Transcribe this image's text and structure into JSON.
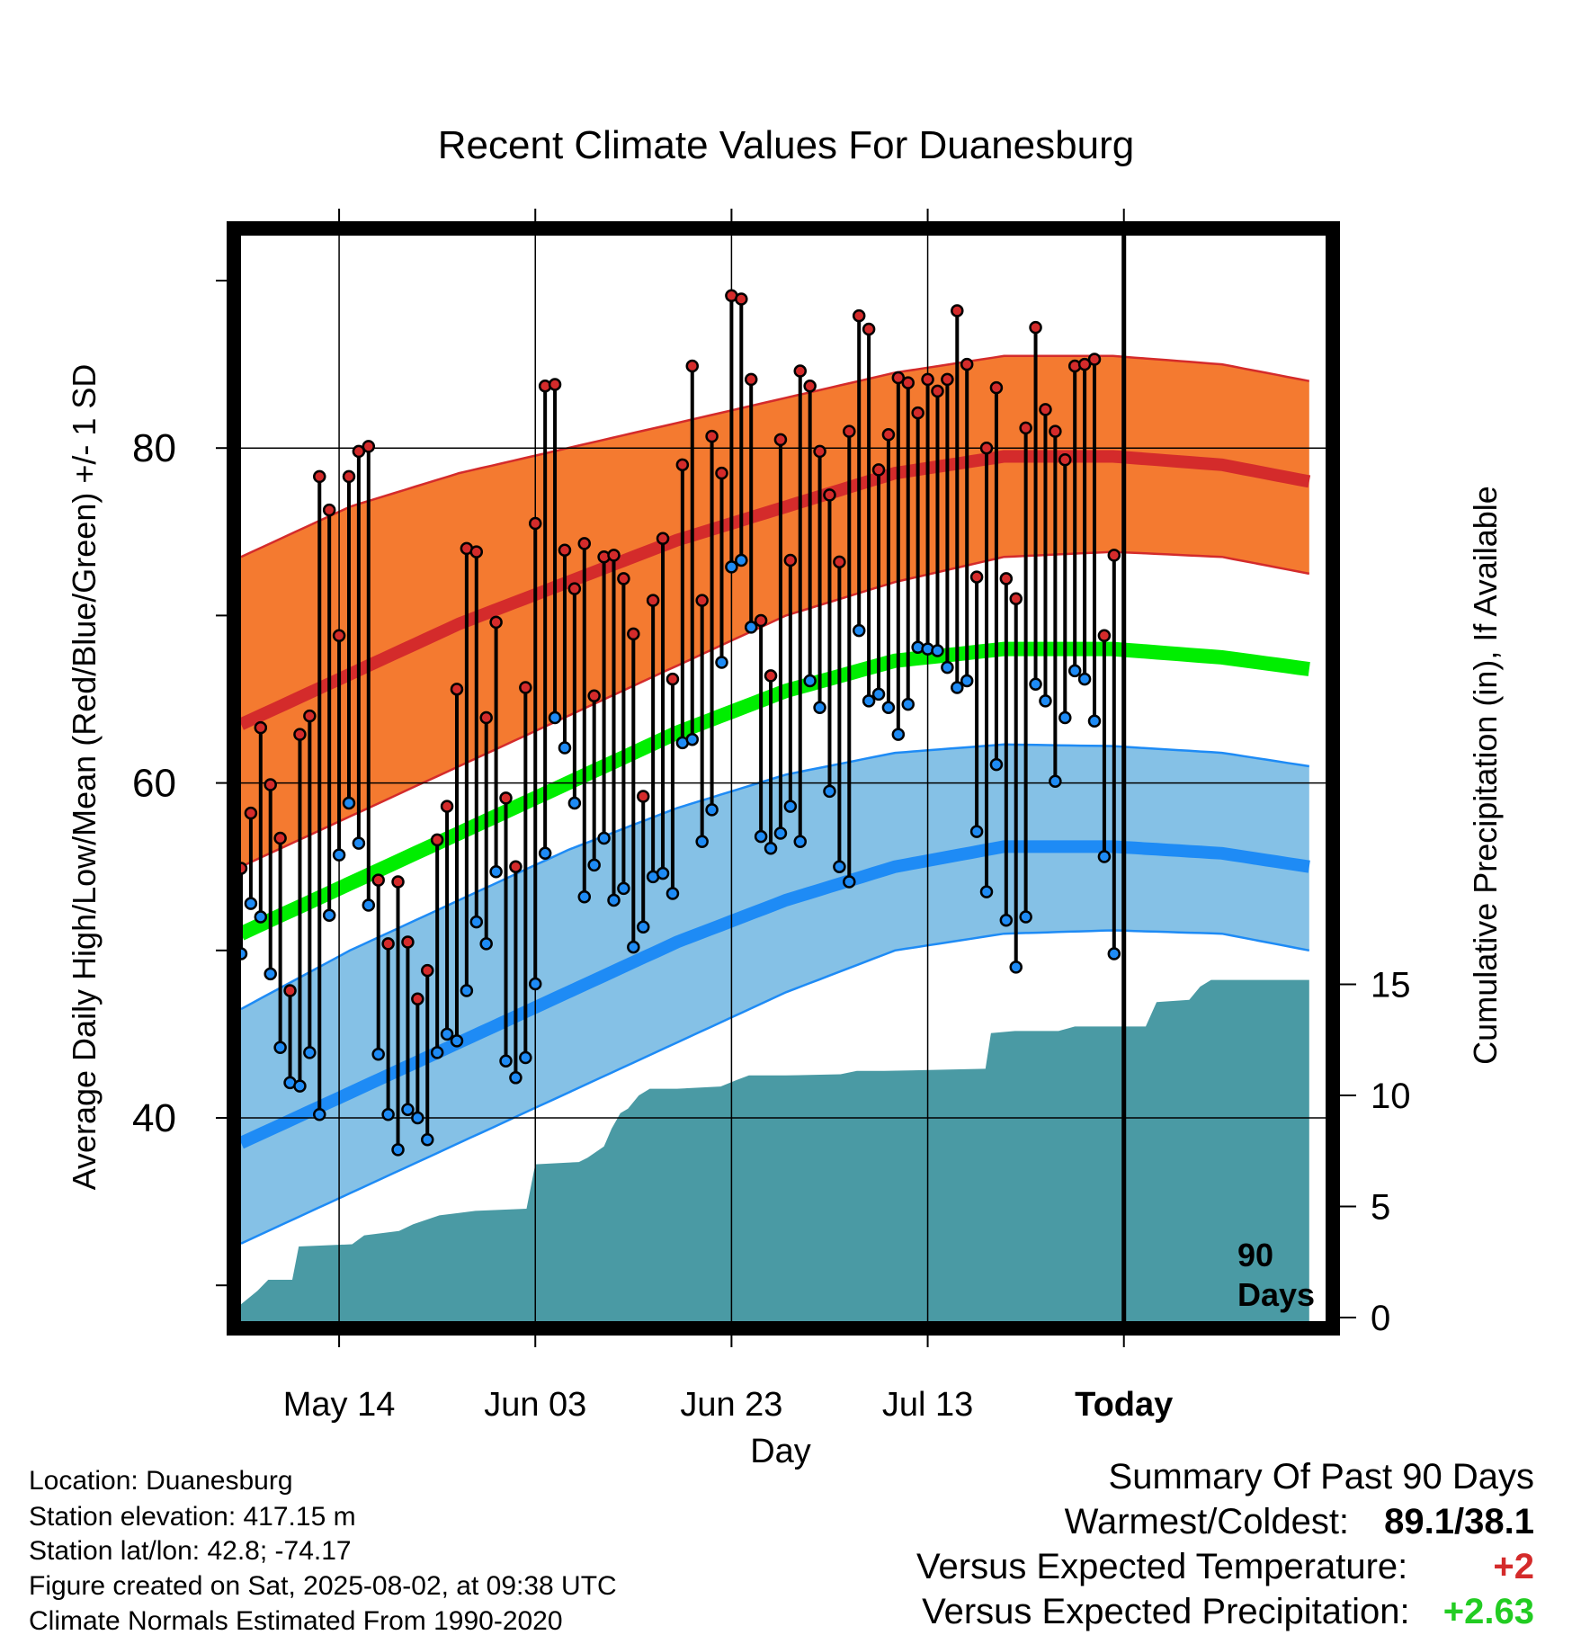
{
  "chart_data": {
    "type": "line",
    "title": "Recent Climate Values For Duanesburg",
    "xlabel": "Day",
    "ylabel": "Average Daily High/Low/Mean (Red/Blue/Green) +/- 1 SD",
    "y2label": "Cumulative Precipitation (in), If Available",
    "ylim": [
      28,
      93
    ],
    "y2lim": [
      0,
      20
    ],
    "yticks": [
      40,
      60,
      80
    ],
    "y2ticks": [
      0,
      5,
      10,
      15
    ],
    "xticklabels": [
      "May 14",
      "Jun 03",
      "Jun 23",
      "Jul 13",
      "Today"
    ],
    "today_marker": {
      "line1": "90",
      "line2": "Days"
    },
    "colors": {
      "high": "#d42b2b",
      "low": "#1e8bf5",
      "mean": "#00ee00",
      "high_band": "#f47a30",
      "low_band": "#85c1e6",
      "precip": "#4a9aa4"
    },
    "normals": {
      "high_mean": [
        [
          0,
          63.5
        ],
        [
          10,
          66.5
        ],
        [
          20,
          69.5
        ],
        [
          30,
          72
        ],
        [
          40,
          74.5
        ],
        [
          50,
          76.5
        ],
        [
          60,
          78.5
        ],
        [
          70,
          79.5
        ],
        [
          80,
          79.5
        ],
        [
          90,
          79
        ],
        [
          98,
          78
        ]
      ],
      "high_upper": [
        [
          0,
          73.5
        ],
        [
          10,
          76.5
        ],
        [
          20,
          78.5
        ],
        [
          30,
          80
        ],
        [
          40,
          81.5
        ],
        [
          50,
          83
        ],
        [
          60,
          84.5
        ],
        [
          70,
          85.5
        ],
        [
          80,
          85.5
        ],
        [
          90,
          85
        ],
        [
          98,
          84
        ]
      ],
      "high_lower": [
        [
          0,
          55
        ],
        [
          10,
          58
        ],
        [
          20,
          61
        ],
        [
          30,
          64
        ],
        [
          40,
          67
        ],
        [
          50,
          70
        ],
        [
          60,
          72
        ],
        [
          70,
          73.5
        ],
        [
          80,
          73.8
        ],
        [
          90,
          73.5
        ],
        [
          98,
          72.5
        ]
      ],
      "low_mean": [
        [
          0,
          38.5
        ],
        [
          10,
          41.5
        ],
        [
          20,
          44.5
        ],
        [
          30,
          47.5
        ],
        [
          40,
          50.5
        ],
        [
          50,
          53
        ],
        [
          60,
          55
        ],
        [
          70,
          56.2
        ],
        [
          80,
          56.2
        ],
        [
          90,
          55.8
        ],
        [
          98,
          55
        ]
      ],
      "low_upper": [
        [
          0,
          46.5
        ],
        [
          10,
          50
        ],
        [
          20,
          53
        ],
        [
          30,
          56
        ],
        [
          40,
          58.5
        ],
        [
          50,
          60.5
        ],
        [
          60,
          61.8
        ],
        [
          70,
          62.3
        ],
        [
          80,
          62.2
        ],
        [
          90,
          61.8
        ],
        [
          98,
          61
        ]
      ],
      "low_lower": [
        [
          0,
          32.5
        ],
        [
          10,
          35.5
        ],
        [
          20,
          38.5
        ],
        [
          30,
          41.5
        ],
        [
          40,
          44.5
        ],
        [
          50,
          47.5
        ],
        [
          60,
          50
        ],
        [
          70,
          51
        ],
        [
          80,
          51.2
        ],
        [
          90,
          51
        ],
        [
          98,
          50
        ]
      ],
      "mean": [
        [
          0,
          51
        ],
        [
          10,
          54
        ],
        [
          20,
          57
        ],
        [
          30,
          60
        ],
        [
          40,
          63
        ],
        [
          50,
          65.5
        ],
        [
          60,
          67.3
        ],
        [
          70,
          68
        ],
        [
          80,
          68
        ],
        [
          90,
          67.5
        ],
        [
          98,
          66.8
        ]
      ]
    },
    "daily": {
      "high": [
        54.9,
        58.2,
        63.3,
        59.9,
        56.7,
        47.6,
        62.9,
        64.0,
        78.3,
        76.3,
        68.8,
        78.3,
        79.8,
        80.1,
        54.2,
        50.4,
        54.1,
        50.5,
        47.1,
        48.8,
        56.6,
        58.6,
        65.6,
        74.0,
        73.8,
        63.9,
        69.6,
        59.1,
        55.0,
        65.7,
        75.5,
        83.7,
        83.8,
        73.9,
        71.6,
        74.3,
        65.2,
        73.5,
        73.6,
        72.2,
        68.9,
        59.2,
        70.9,
        74.6,
        66.2,
        79.0,
        84.9,
        70.9,
        80.7,
        78.5,
        89.1,
        88.9,
        84.1,
        69.7,
        66.4,
        80.5,
        73.3,
        84.6,
        83.7,
        79.8,
        77.2,
        73.2,
        81.0,
        87.9,
        87.1,
        78.7,
        80.8,
        84.2,
        83.9,
        82.1,
        84.1,
        83.4,
        84.1,
        88.2,
        85.0,
        72.3,
        80.0,
        83.6,
        72.2,
        71.0,
        81.2,
        87.2,
        82.3,
        81.0,
        79.3,
        84.9,
        85.0,
        85.3,
        68.8,
        73.6
      ],
      "low": [
        49.8,
        52.8,
        52.0,
        48.6,
        44.2,
        42.1,
        41.9,
        43.9,
        40.2,
        52.1,
        55.7,
        58.8,
        56.4,
        52.7,
        43.8,
        40.2,
        38.1,
        40.5,
        40.0,
        38.7,
        43.9,
        45.0,
        44.6,
        47.6,
        51.7,
        50.4,
        54.7,
        43.4,
        42.4,
        43.6,
        48.0,
        55.8,
        63.9,
        62.1,
        58.8,
        53.2,
        55.1,
        56.7,
        53.0,
        53.7,
        50.2,
        51.4,
        54.4,
        54.6,
        53.4,
        62.4,
        62.6,
        56.5,
        58.4,
        67.2,
        72.9,
        73.3,
        69.3,
        56.8,
        56.1,
        57.0,
        58.6,
        56.5,
        66.1,
        64.5,
        59.5,
        55.0,
        54.1,
        69.1,
        64.9,
        65.3,
        64.5,
        62.9,
        64.7,
        68.1,
        68.0,
        67.9,
        66.9,
        65.7,
        66.1,
        57.1,
        53.5,
        61.1,
        51.8,
        49.0,
        52.0,
        65.9,
        64.9,
        60.1,
        63.9,
        66.7,
        66.2,
        63.7,
        55.6,
        49.8
      ]
    },
    "precip_cumulative": [
      [
        0,
        0.6
      ],
      [
        1.5,
        1.2
      ],
      [
        2.5,
        1.7
      ],
      [
        4.7,
        1.7
      ],
      [
        5.3,
        3.2
      ],
      [
        10.2,
        3.3
      ],
      [
        11.3,
        3.7
      ],
      [
        14.5,
        3.9
      ],
      [
        15.8,
        4.2
      ],
      [
        18.2,
        4.6
      ],
      [
        21.5,
        4.8
      ],
      [
        26.2,
        4.9
      ],
      [
        27.0,
        6.9
      ],
      [
        31.0,
        7.0
      ],
      [
        31.8,
        7.2
      ],
      [
        33.3,
        7.7
      ],
      [
        34.0,
        8.5
      ],
      [
        34.8,
        9.2
      ],
      [
        35.5,
        9.4
      ],
      [
        36.5,
        10.0
      ],
      [
        37.5,
        10.3
      ],
      [
        40.0,
        10.3
      ],
      [
        44.0,
        10.4
      ],
      [
        45.5,
        10.7
      ],
      [
        46.6,
        10.9
      ],
      [
        50.0,
        10.9
      ],
      [
        55.0,
        10.95
      ],
      [
        56.5,
        11.1
      ],
      [
        59.0,
        11.1
      ],
      [
        68.3,
        11.2
      ],
      [
        68.8,
        12.8
      ],
      [
        71.0,
        12.9
      ],
      [
        75.0,
        12.9
      ],
      [
        76.5,
        13.1
      ],
      [
        83.0,
        13.1
      ],
      [
        84.0,
        14.2
      ],
      [
        87.0,
        14.3
      ],
      [
        88.0,
        14.9
      ],
      [
        89.0,
        15.2
      ],
      [
        98.0,
        15.2
      ]
    ]
  },
  "footer": {
    "location": "Location: Duanesburg",
    "elevation": "Station elevation: 417.15 m",
    "latlon": "Station lat/lon: 42.8; -74.17",
    "created": "Figure created on Sat, 2025-08-02, at 09:38 UTC",
    "normals": "Climate Normals Estimated From 1990-2020"
  },
  "summary": {
    "title": "Summary Of Past 90 Days",
    "warm_label": "Warmest/Coldest:",
    "warm_value": "89.1/38.1",
    "temp_label": "Versus Expected Temperature:",
    "temp_value": "+2",
    "precip_label": "Versus Expected Precipitation:",
    "precip_value": "+2.63"
  }
}
